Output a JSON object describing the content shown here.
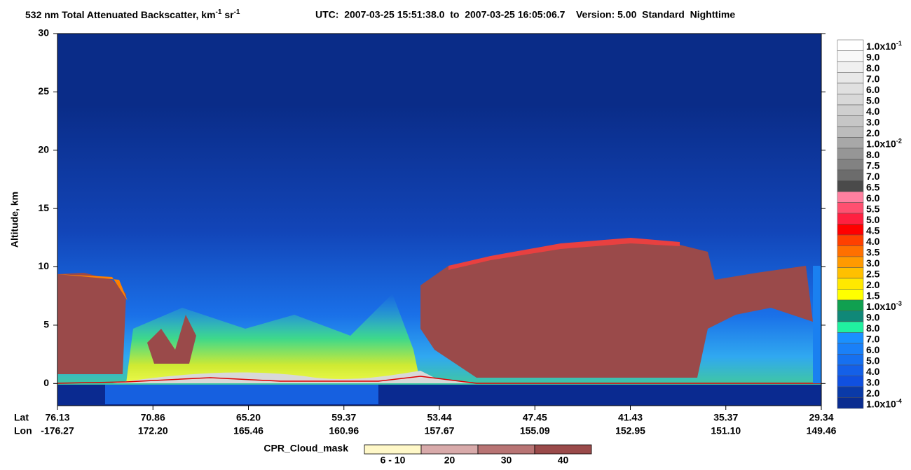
{
  "chart_data": {
    "type": "curtain",
    "title": {
      "main": "532 nm Total Attenuated Backscatter, km",
      "sup1": "-1",
      "mid": " sr",
      "sup2": "-1",
      "rest": "UTC:  2007-03-25 15:51:38.0  to  2007-03-25 16:05:06.7    Version: 5.00  Standard  Nighttime"
    },
    "ylabel": "Altitude, km",
    "ylim": [
      -1.9,
      30
    ],
    "yticks": [
      0,
      5,
      10,
      15,
      20,
      25,
      30
    ],
    "x_rows": [
      {
        "name": "Lat",
        "labels": [
          "76.13",
          "70.86",
          "65.20",
          "59.37",
          "53.44",
          "47.45",
          "41.43",
          "35.37",
          "29.34"
        ]
      },
      {
        "name": "Lon",
        "labels": [
          "-176.27",
          "172.20",
          "165.46",
          "160.96",
          "157.67",
          "155.09",
          "152.95",
          "151.10",
          "149.46"
        ]
      }
    ],
    "colorbar": [
      {
        "label": "1.0x10",
        "sup": "-1",
        "color": "#ffffff"
      },
      {
        "label": "9.0",
        "color": "#f8f8f8"
      },
      {
        "label": "8.0",
        "color": "#f0f0f0"
      },
      {
        "label": "7.0",
        "color": "#e8e8e8"
      },
      {
        "label": "6.0",
        "color": "#e0e0e0"
      },
      {
        "label": "5.0",
        "color": "#d8d8d8"
      },
      {
        "label": "4.0",
        "color": "#cfcfcf"
      },
      {
        "label": "3.0",
        "color": "#c6c6c6"
      },
      {
        "label": "2.0",
        "color": "#bcbcbc"
      },
      {
        "label": "1.0x10",
        "sup": "-2",
        "color": "#a8a8a8"
      },
      {
        "label": "8.0",
        "color": "#969696"
      },
      {
        "label": "7.5",
        "color": "#828282"
      },
      {
        "label": "7.0",
        "color": "#6c6c6c"
      },
      {
        "label": "6.5",
        "color": "#4a4a4a"
      },
      {
        "label": "6.0",
        "color": "#ff80a0"
      },
      {
        "label": "5.5",
        "color": "#ff5070"
      },
      {
        "label": "5.0",
        "color": "#ff2040"
      },
      {
        "label": "4.5",
        "color": "#ff0000"
      },
      {
        "label": "4.0",
        "color": "#ff4000"
      },
      {
        "label": "3.5",
        "color": "#ff7000"
      },
      {
        "label": "3.0",
        "color": "#ff9a00"
      },
      {
        "label": "2.5",
        "color": "#ffc000"
      },
      {
        "label": "2.0",
        "color": "#ffe800"
      },
      {
        "label": "1.5",
        "color": "#ffff00"
      },
      {
        "label": "1.0x10",
        "sup": "-3",
        "color": "#10a050"
      },
      {
        "label": "9.0",
        "color": "#108878"
      },
      {
        "label": "8.0",
        "color": "#20f0a0"
      },
      {
        "label": "7.0",
        "color": "#1a90ff"
      },
      {
        "label": "6.0",
        "color": "#1a80f8"
      },
      {
        "label": "5.0",
        "color": "#1670f0"
      },
      {
        "label": "4.0",
        "color": "#1460e8"
      },
      {
        "label": "3.0",
        "color": "#1050e0"
      },
      {
        "label": "2.0",
        "color": "#0a3aa8"
      },
      {
        "label": "1.0x10",
        "sup": "-4",
        "color": "#0a2c90"
      }
    ],
    "cloud_mask": {
      "title": "CPR_Cloud_mask",
      "items": [
        {
          "label": "6 - 10",
          "color": "#fff8c8"
        },
        {
          "label": "20",
          "color": "#d8aaaa"
        },
        {
          "label": "30",
          "color": "#b87474"
        },
        {
          "label": "40",
          "color": "#9a4a4a"
        }
      ]
    }
  }
}
